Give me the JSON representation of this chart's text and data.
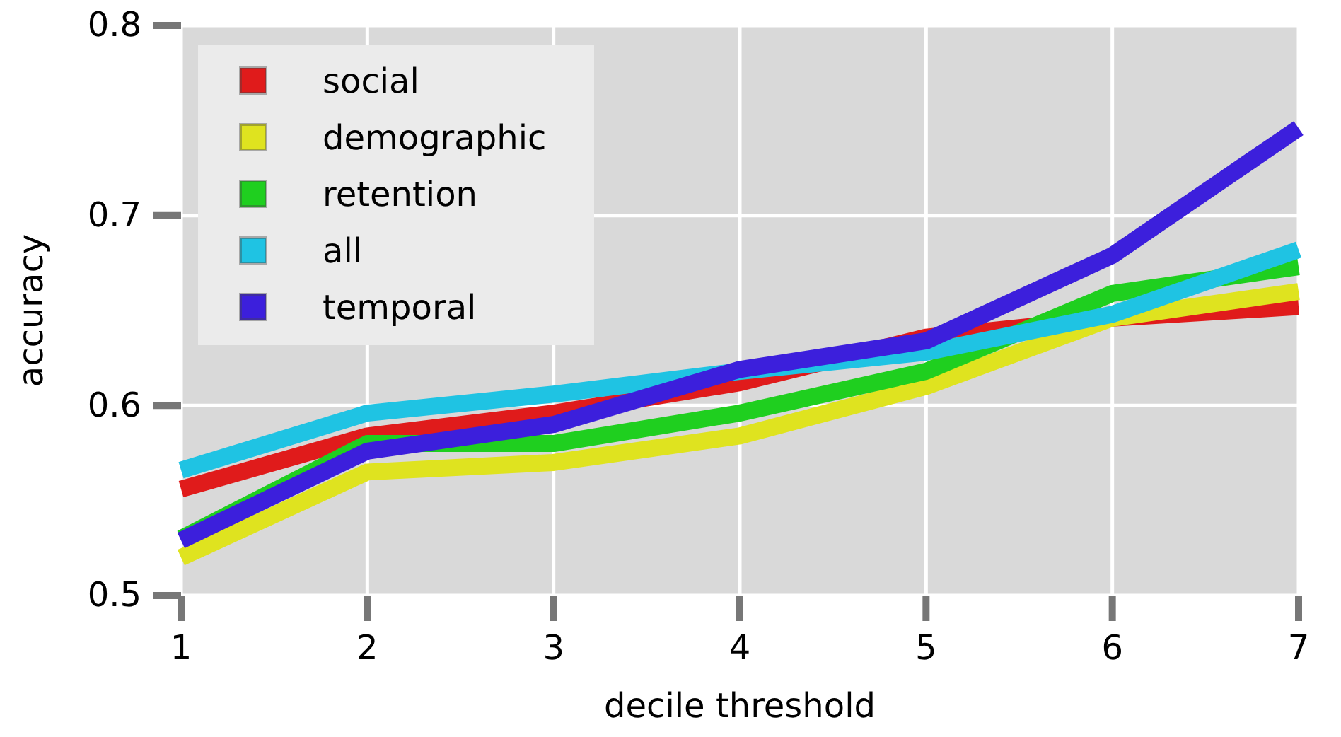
{
  "chart_data": {
    "type": "line",
    "xlabel": "decile threshold",
    "ylabel": "accuracy",
    "x": [
      1,
      2,
      3,
      4,
      5,
      6,
      7
    ],
    "series": [
      {
        "name": "social",
        "color": "#e01b1b",
        "values": [
          0.556,
          0.584,
          0.596,
          0.612,
          0.636,
          0.646,
          0.652
        ]
      },
      {
        "name": "demographic",
        "color": "#dfe31f",
        "values": [
          0.52,
          0.565,
          0.57,
          0.584,
          0.61,
          0.646,
          0.66
        ]
      },
      {
        "name": "retention",
        "color": "#1fcf1f",
        "values": [
          0.53,
          0.58,
          0.58,
          0.596,
          0.618,
          0.659,
          0.673
        ]
      },
      {
        "name": "all",
        "color": "#1fc3e3",
        "values": [
          0.566,
          0.596,
          0.606,
          0.618,
          0.628,
          0.648,
          0.682
        ]
      },
      {
        "name": "temporal",
        "color": "#3c1fdc",
        "values": [
          0.529,
          0.576,
          0.59,
          0.619,
          0.634,
          0.679,
          0.746
        ]
      }
    ],
    "xlim": [
      1,
      7
    ],
    "ylim": [
      0.5,
      0.8
    ],
    "xticks": [
      1,
      2,
      3,
      4,
      5,
      6,
      7
    ],
    "yticks": [
      {
        "value": 0.5,
        "label": "0.5"
      },
      {
        "value": 0.6,
        "label": "0.6"
      },
      {
        "value": 0.7,
        "label": "0.7"
      },
      {
        "value": 0.8,
        "label": "0.8"
      }
    ],
    "grid": true,
    "legend": "top left"
  }
}
